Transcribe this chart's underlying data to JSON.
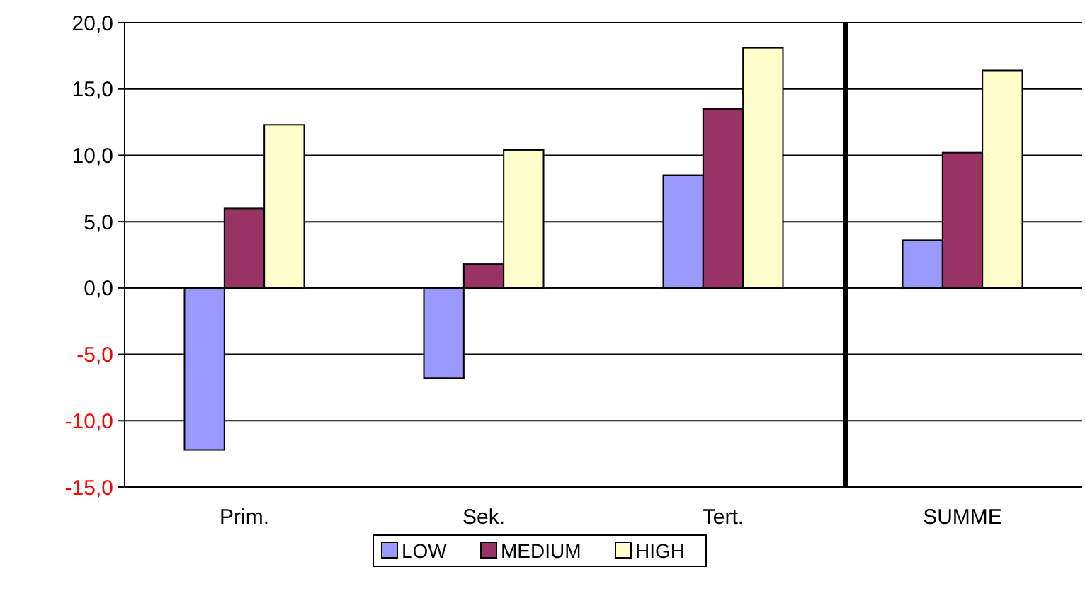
{
  "chart_data": {
    "type": "bar",
    "categories": [
      "Prim.",
      "Sek.",
      "Tert.",
      "SUMME"
    ],
    "series": [
      {
        "name": "LOW",
        "color": "#9999ff",
        "values": [
          -12.2,
          -6.8,
          8.5,
          3.6
        ]
      },
      {
        "name": "MEDIUM",
        "color": "#993366",
        "values": [
          6.0,
          1.8,
          13.5,
          10.2
        ]
      },
      {
        "name": "HIGH",
        "color": "#ffffcc",
        "values": [
          12.3,
          10.4,
          18.1,
          16.4
        ]
      }
    ],
    "ylim": [
      -15,
      20
    ],
    "yticks": [
      {
        "value": -15,
        "label": "-15,0"
      },
      {
        "value": -10,
        "label": "-10,0"
      },
      {
        "value": -5,
        "label": "-5,0"
      },
      {
        "value": 0,
        "label": "0,0"
      },
      {
        "value": 5,
        "label": "5,0"
      },
      {
        "value": 10,
        "label": "10,0"
      },
      {
        "value": 15,
        "label": "15,0"
      },
      {
        "value": 20,
        "label": "20,0"
      }
    ],
    "grid": "y",
    "legend": "bottom",
    "ref_lines": [
      {
        "axis": "x",
        "value": "SUMME",
        "color": "#000000"
      }
    ]
  }
}
